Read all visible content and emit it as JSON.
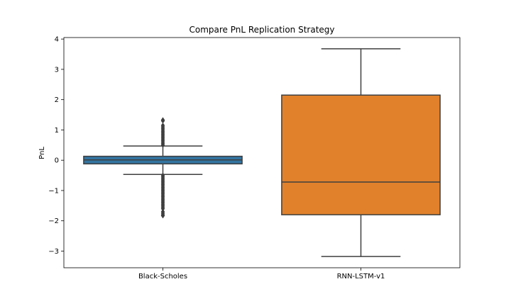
{
  "chart_data": {
    "type": "box",
    "title": "Compare PnL Replication Strategy",
    "xlabel": "",
    "ylabel": "PnL",
    "ylim": [
      -3.55,
      4.05
    ],
    "yticks": [
      {
        "value": 4,
        "label": "4"
      },
      {
        "value": 3,
        "label": "3"
      },
      {
        "value": 2,
        "label": "2"
      },
      {
        "value": 1,
        "label": "1"
      },
      {
        "value": 0,
        "label": "0"
      },
      {
        "value": -1,
        "label": "−1"
      },
      {
        "value": -2,
        "label": "−2"
      },
      {
        "value": -3,
        "label": "−3"
      }
    ],
    "categories": [
      "Black-Scholes",
      "RNN-LSTM-v1"
    ],
    "boxes": [
      {
        "category": "Black-Scholes",
        "color": "#3274a1",
        "whisker_low": -0.47,
        "q1": -0.12,
        "median": 0.01,
        "q3": 0.13,
        "whisker_high": 0.47,
        "outliers": [
          0.5,
          0.55,
          0.6,
          0.65,
          0.7,
          0.75,
          0.8,
          0.85,
          0.9,
          0.95,
          1.0,
          1.05,
          1.1,
          1.15,
          1.3,
          1.33,
          -0.5,
          -0.55,
          -0.6,
          -0.65,
          -0.7,
          -0.75,
          -0.8,
          -0.85,
          -0.9,
          -0.95,
          -1.0,
          -1.05,
          -1.1,
          -1.15,
          -1.2,
          -1.25,
          -1.3,
          -1.35,
          -1.4,
          -1.45,
          -1.5,
          -1.55,
          -1.6,
          -1.7,
          -1.75,
          -1.8,
          -1.83
        ]
      },
      {
        "category": "RNN-LSTM-v1",
        "color": "#e1812c",
        "whisker_low": -3.18,
        "q1": -1.8,
        "median": -0.72,
        "q3": 2.15,
        "whisker_high": 3.68,
        "outliers": []
      }
    ],
    "grid": false,
    "legend": "none"
  }
}
